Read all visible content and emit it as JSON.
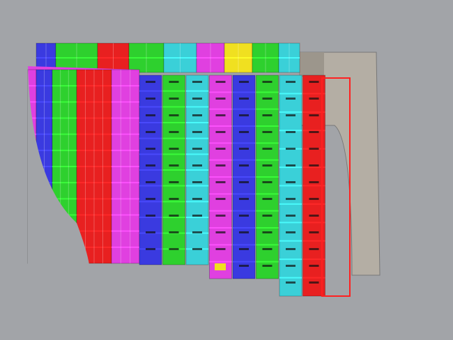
{
  "viewport": {
    "background": "#a2a4a8"
  },
  "colors": {
    "blue": "#3a3ae0",
    "green": "#2ed02e",
    "cyan": "#3ad0d8",
    "magenta": "#e040e0",
    "red": "#e82020",
    "yellow": "#f0e020",
    "grey": "#b4aea4",
    "outline": "#ff2020"
  },
  "top_strip": [
    "blue",
    "green",
    "red",
    "green",
    "cyan",
    "magenta",
    "yellow",
    "green",
    "cyan"
  ],
  "aft_bands": [
    "magenta",
    "blue",
    "green",
    "red",
    "magenta"
  ],
  "fore_columns": [
    "blue",
    "green",
    "cyan",
    "magenta",
    "blue",
    "green",
    "cyan",
    "red"
  ]
}
